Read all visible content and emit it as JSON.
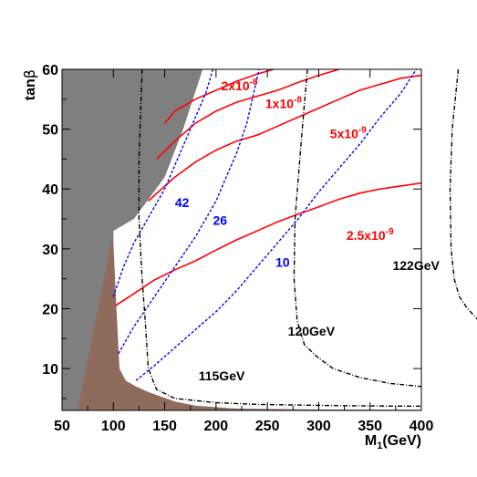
{
  "chart_data": {
    "type": "line",
    "title": "",
    "xlabel": "M",
    "xlabel_sub": "1",
    "xlabel_unit": "(GeV)",
    "ylabel": "tan",
    "ylabel_symbol": "β",
    "xlim": [
      50,
      400
    ],
    "ylim": [
      3,
      60
    ],
    "xticks": [
      50,
      100,
      150,
      200,
      250,
      300,
      350,
      400
    ],
    "yticks": [
      10,
      20,
      30,
      40,
      50,
      60
    ],
    "grid": false,
    "regions": [
      {
        "id": "excluded-gray",
        "color": "#7f7f7f",
        "points": [
          [
            50,
            3
          ],
          [
            50,
            60
          ],
          [
            187,
            60
          ],
          [
            168,
            50
          ],
          [
            150,
            42
          ],
          [
            133,
            38
          ],
          [
            120,
            35
          ],
          [
            100,
            33
          ],
          [
            100,
            32.8
          ],
          [
            80,
            3
          ]
        ]
      },
      {
        "id": "excluded-brown",
        "color": "#8f6b5c",
        "points": [
          [
            65,
            3
          ],
          [
            100,
            33
          ],
          [
            100,
            31
          ],
          [
            103,
            20
          ],
          [
            106,
            10
          ],
          [
            112,
            8
          ],
          [
            122,
            7
          ],
          [
            135,
            6
          ],
          [
            160,
            4.5
          ],
          [
            180,
            3.8
          ],
          [
            220,
            3.3
          ],
          [
            300,
            3.15
          ],
          [
            400,
            3.1
          ],
          [
            400,
            3
          ]
        ]
      }
    ],
    "series": [
      {
        "name": "2x10",
        "exp": "-8",
        "color": "#ff0000",
        "style": "solid",
        "x": [
          150,
          160,
          180,
          200,
          220,
          240,
          256
        ],
        "y": [
          51,
          53,
          55,
          56.5,
          58,
          59.2,
          60
        ]
      },
      {
        "name": "1x10",
        "exp": "-8",
        "color": "#ff0000",
        "style": "solid",
        "x": [
          142,
          160,
          180,
          200,
          220,
          240,
          260,
          280,
          300,
          320
        ],
        "y": [
          45,
          48,
          51,
          53,
          54.5,
          55.5,
          56.5,
          57.8,
          59,
          60
        ]
      },
      {
        "name": "5x10",
        "exp": "-9",
        "color": "#ff0000",
        "style": "solid",
        "x": [
          134,
          160,
          180,
          200,
          220,
          240,
          260,
          280,
          300,
          320,
          340,
          360,
          380,
          400
        ],
        "y": [
          38,
          42,
          44.5,
          46.5,
          48,
          49,
          50.5,
          52,
          53.5,
          55,
          56.5,
          57.5,
          58.5,
          59
        ]
      },
      {
        "name": "2.5x10",
        "exp": "-9",
        "color": "#ff0000",
        "style": "solid",
        "x": [
          102,
          120,
          140,
          160,
          180,
          200,
          220,
          240,
          260,
          280,
          300,
          320,
          340,
          360,
          380,
          400
        ],
        "y": [
          20.5,
          22.5,
          24.8,
          26.5,
          28,
          29.8,
          31.5,
          33,
          34.5,
          35.8,
          37,
          38.3,
          39.3,
          40,
          40.5,
          41
        ]
      },
      {
        "name": "42",
        "color": "#0000ff",
        "style": "dashed",
        "x": [
          100,
          110,
          120,
          130,
          140,
          150,
          160,
          170,
          180,
          190,
          197
        ],
        "y": [
          22,
          27,
          31,
          34,
          37,
          40,
          44,
          48,
          52,
          56,
          60
        ]
      },
      {
        "name": "26",
        "color": "#0000ff",
        "style": "dashed",
        "x": [
          105,
          120,
          140,
          160,
          180,
          200,
          210,
          220,
          230,
          242
        ],
        "y": [
          12.5,
          17,
          22,
          27,
          32,
          38,
          42,
          46,
          51,
          60
        ]
      },
      {
        "name": "10",
        "color": "#0000ff",
        "style": "dashed",
        "x": [
          122,
          140,
          160,
          180,
          200,
          220,
          240,
          260,
          280,
          300,
          320,
          340,
          360,
          380,
          395
        ],
        "y": [
          8,
          10.5,
          13.5,
          16.5,
          19.5,
          23,
          27,
          31,
          35,
          39.5,
          43.5,
          47.5,
          52,
          56,
          60
        ]
      },
      {
        "name": "115GeV",
        "color": "#000000",
        "style": "dashdot",
        "x": [
          128,
          125,
          125,
          128,
          131,
          134,
          142,
          160,
          200,
          240,
          280,
          320,
          360,
          400
        ],
        "y": [
          60,
          45,
          35,
          25,
          18,
          10,
          6.5,
          5,
          4.3,
          4.0,
          3.9,
          3.8,
          3.75,
          3.7
        ]
      },
      {
        "name": "120GeV",
        "color": "#000000",
        "style": "dashdot",
        "x": [
          289,
          283,
          277,
          276,
          279,
          286,
          298,
          314,
          340,
          370,
          400
        ],
        "y": [
          60,
          48,
          35,
          25,
          18,
          14,
          12,
          10,
          8.5,
          7.5,
          7
        ]
      },
      {
        "name": "122GeV",
        "color": "#000000",
        "style": "dashdot",
        "x": [
          436,
          430,
          428,
          429,
          432,
          437,
          445,
          456,
          462
        ],
        "y": [
          60,
          50,
          40,
          30,
          25,
          22,
          20,
          18,
          17
        ]
      }
    ],
    "annotations": [
      {
        "series": "2x10",
        "text": "2x10",
        "exp": "-8",
        "color": "#ff0000",
        "x": 205,
        "y": 56.5
      },
      {
        "series": "1x10",
        "text": "1x10",
        "exp": "-8",
        "color": "#ff0000",
        "x": 248,
        "y": 53.5
      },
      {
        "series": "5x10",
        "text": "5x10",
        "exp": "-9",
        "color": "#ff0000",
        "x": 311,
        "y": 48.5
      },
      {
        "series": "2.5x10",
        "text": "2.5x10",
        "exp": "-9",
        "color": "#ff0000",
        "x": 327,
        "y": 31.5
      },
      {
        "series": "42",
        "text": "42",
        "color": "#0000ff",
        "x": 160,
        "y": 37
      },
      {
        "series": "26",
        "text": "26",
        "color": "#0000ff",
        "x": 197,
        "y": 34
      },
      {
        "series": "10",
        "text": "10",
        "color": "#0000ff",
        "x": 258,
        "y": 27
      },
      {
        "series": "122GeV",
        "text": "122GeV",
        "color": "#000000",
        "x": 372,
        "y": 26.5
      },
      {
        "series": "120GeV",
        "text": "120GeV",
        "color": "#000000",
        "x": 270,
        "y": 15.5
      },
      {
        "series": "115GeV",
        "text": "115GeV",
        "color": "#000000",
        "x": 183,
        "y": 8
      }
    ]
  }
}
